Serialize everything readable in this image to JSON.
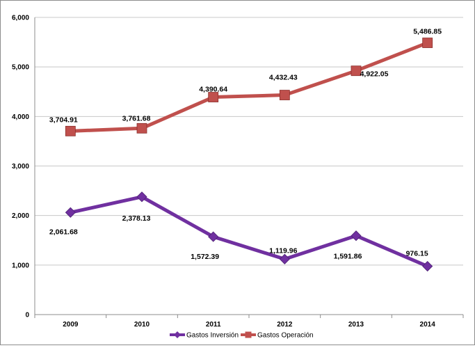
{
  "chart_data": {
    "type": "line",
    "categories": [
      "2009",
      "2010",
      "2011",
      "2012",
      "2013",
      "2014"
    ],
    "series": [
      {
        "name": "Gastos Inversión",
        "color": "#7030a0",
        "marker": "diamond",
        "values": [
          2061.68,
          2378.13,
          1572.39,
          1119.96,
          1591.86,
          976.15
        ],
        "labels": [
          "2,061.68",
          "2,378.13",
          "1,572.39",
          "1,119.96",
          "1,591.86",
          "976.15"
        ]
      },
      {
        "name": "Gastos Operación",
        "color": "#c0504d",
        "marker": "square",
        "values": [
          3704.91,
          3761.68,
          4390.64,
          4432.43,
          4922.05,
          5486.85
        ],
        "labels": [
          "3,704.91",
          "3,761.68",
          "4,390.64",
          "4,432.43",
          "4,922.05",
          "5,486.85"
        ]
      }
    ],
    "ylim": [
      0,
      6000
    ],
    "yticks": [
      0,
      1000,
      2000,
      3000,
      4000,
      5000,
      6000
    ],
    "ytick_labels": [
      "0",
      "1,000",
      "2,000",
      "3,000",
      "4,000",
      "5,000",
      "6,000"
    ],
    "grid": true,
    "legend_position": "bottom",
    "title": "",
    "xlabel": "",
    "ylabel": ""
  }
}
